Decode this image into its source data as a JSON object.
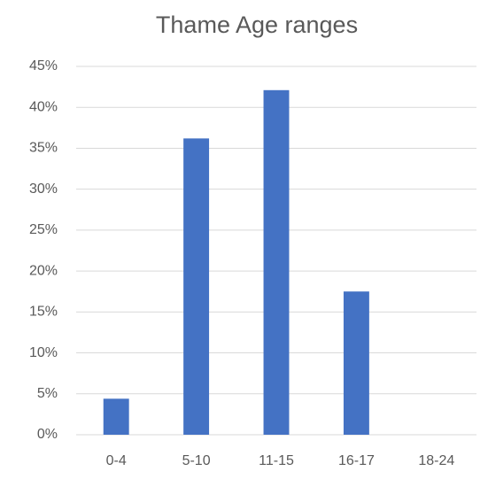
{
  "chart_data": {
    "type": "bar",
    "title": "Thame Age ranges",
    "categories": [
      "0-4",
      "5-10",
      "11-15",
      "16-17",
      "18-24"
    ],
    "values": [
      4.4,
      36.2,
      42.1,
      17.5,
      0
    ],
    "color": "#4472c4",
    "ylim": [
      0,
      45
    ],
    "yticks": [
      {
        "value": 0,
        "label": "0%"
      },
      {
        "value": 5,
        "label": "5%"
      },
      {
        "value": 10,
        "label": "10%"
      },
      {
        "value": 15,
        "label": "15%"
      },
      {
        "value": 20,
        "label": "20%"
      },
      {
        "value": 25,
        "label": "25%"
      },
      {
        "value": 30,
        "label": "30%"
      },
      {
        "value": 35,
        "label": "35%"
      },
      {
        "value": 40,
        "label": "40%"
      },
      {
        "value": 45,
        "label": "45%"
      }
    ],
    "grid": true
  }
}
